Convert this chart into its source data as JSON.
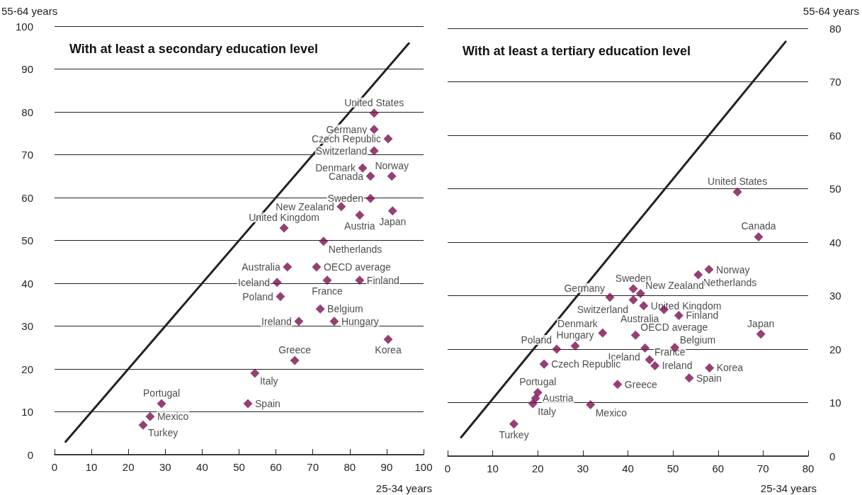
{
  "chart_data": [
    {
      "type": "scatter",
      "title": "With at least a secondary education level",
      "xlabel": "25-34 years",
      "ylabel": "55-64 years",
      "xlim": [
        0,
        100
      ],
      "ylim": [
        0,
        100
      ],
      "xticks": [
        0,
        10,
        20,
        30,
        40,
        50,
        60,
        70,
        80,
        90,
        100
      ],
      "yticks": [
        0,
        10,
        20,
        30,
        40,
        50,
        60,
        70,
        80,
        90,
        100
      ],
      "grid": "y",
      "marker": "diamond",
      "series": [
        {
          "color": "#7b0f52",
          "x": [
            86.6,
            86.6,
            90.4,
            86.6,
            83.5,
            85.6,
            91.4,
            85.6,
            77.7,
            82.7,
            91.6,
            62.2,
            72.9,
            63.1,
            71.0,
            60.3,
            73.9,
            82.7,
            61.2,
            72.0,
            66.2,
            75.8,
            90.4,
            65.1,
            54.3,
            52.4,
            29.0,
            25.9,
            24.0
          ],
          "values": [
            79.7,
            75.9,
            73.7,
            70.9,
            66.9,
            65.0,
            65.0,
            59.8,
            57.9,
            55.9,
            56.9,
            52.9,
            49.8,
            43.8,
            43.8,
            40.2,
            40.7,
            40.7,
            36.9,
            34.0,
            31.1,
            31.1,
            26.9,
            22.0,
            19.0,
            11.9,
            11.9,
            8.9,
            6.9
          ]
        },
        {
          "type": "line",
          "color": "#222222",
          "marker": "none",
          "line_style": "solid",
          "x": [
            3,
            96
          ],
          "values": [
            3,
            96
          ]
        }
      ],
      "annotations": [
        {
          "text": "United States",
          "x": 86.6,
          "y": 79.7
        },
        {
          "text": "Germany",
          "x": 86.6,
          "y": 75.9
        },
        {
          "text": "Czech Republic",
          "x": 90.4,
          "y": 73.7
        },
        {
          "text": "Switzerland",
          "x": 86.6,
          "y": 70.9
        },
        {
          "text": "Denmark",
          "x": 83.5,
          "y": 66.9
        },
        {
          "text": "Canada",
          "x": 85.6,
          "y": 65.0
        },
        {
          "text": "Norway",
          "x": 91.4,
          "y": 65.0
        },
        {
          "text": "Sweden",
          "x": 85.6,
          "y": 59.8
        },
        {
          "text": "New Zealand",
          "x": 77.7,
          "y": 57.9
        },
        {
          "text": "Austria",
          "x": 82.7,
          "y": 55.9
        },
        {
          "text": "Japan",
          "x": 91.6,
          "y": 56.9
        },
        {
          "text": "United Kingdom",
          "x": 62.2,
          "y": 52.9
        },
        {
          "text": "Netherlands",
          "x": 72.9,
          "y": 49.8
        },
        {
          "text": "Australia",
          "x": 63.1,
          "y": 43.8
        },
        {
          "text": "OECD average",
          "x": 71.0,
          "y": 43.8
        },
        {
          "text": "Iceland",
          "x": 60.3,
          "y": 40.2
        },
        {
          "text": "France",
          "x": 73.9,
          "y": 40.7
        },
        {
          "text": "Finland",
          "x": 82.7,
          "y": 40.7
        },
        {
          "text": "Poland",
          "x": 61.2,
          "y": 36.9
        },
        {
          "text": "Belgium",
          "x": 72.0,
          "y": 34.0
        },
        {
          "text": "Ireland",
          "x": 66.2,
          "y": 31.1
        },
        {
          "text": "Hungary",
          "x": 75.8,
          "y": 31.1
        },
        {
          "text": "Korea",
          "x": 90.4,
          "y": 26.9
        },
        {
          "text": "Greece",
          "x": 65.1,
          "y": 22.0
        },
        {
          "text": "Italy",
          "x": 54.3,
          "y": 19.0
        },
        {
          "text": "Spain",
          "x": 52.4,
          "y": 11.9
        },
        {
          "text": "Portugal",
          "x": 29.0,
          "y": 11.9
        },
        {
          "text": "Mexico",
          "x": 25.9,
          "y": 8.9
        },
        {
          "text": "Turkey",
          "x": 24.0,
          "y": 6.9
        }
      ]
    },
    {
      "type": "scatter",
      "title": "With at least a tertiary education level",
      "xlabel": "25-34 years",
      "ylabel": "55-64 years",
      "xlim": [
        0,
        80
      ],
      "ylim": [
        0,
        80
      ],
      "xticks": [
        0,
        10,
        20,
        30,
        40,
        50,
        60,
        70,
        80
      ],
      "yticks": [
        0,
        10,
        20,
        30,
        40,
        50,
        60,
        70,
        80
      ],
      "grid": "y",
      "marker": "diamond",
      "series": [
        {
          "color": "#7b0f52",
          "x": [
            64.3,
            69.0,
            58.0,
            55.6,
            41.2,
            42.8,
            36.0,
            41.2,
            43.5,
            48.0,
            51.3,
            69.5,
            34.4,
            41.7,
            28.3,
            24.2,
            43.8,
            50.4,
            44.8,
            46.0,
            21.4,
            58.1,
            53.6,
            37.7,
            20.0,
            19.5,
            18.9,
            31.7,
            14.7
          ],
          "values": [
            49.4,
            41.0,
            34.9,
            33.9,
            31.3,
            30.4,
            29.7,
            29.2,
            28.1,
            27.4,
            26.3,
            22.8,
            23.0,
            22.6,
            20.6,
            20.0,
            20.2,
            20.3,
            18.0,
            16.9,
            17.2,
            16.5,
            14.6,
            13.4,
            11.9,
            10.8,
            9.8,
            9.6,
            6.0
          ]
        },
        {
          "type": "line",
          "color": "#222222",
          "marker": "none",
          "line_style": "solid",
          "x": [
            3,
            75
          ],
          "values": [
            3.5,
            77.5
          ]
        }
      ],
      "annotations": [
        {
          "text": "United States",
          "x": 64.3,
          "y": 49.4
        },
        {
          "text": "Canada",
          "x": 69.0,
          "y": 41.0
        },
        {
          "text": "Norway",
          "x": 58.0,
          "y": 34.9
        },
        {
          "text": "Netherlands",
          "x": 55.6,
          "y": 33.9
        },
        {
          "text": "Sweden",
          "x": 41.2,
          "y": 31.3
        },
        {
          "text": "New Zealand",
          "x": 42.8,
          "y": 30.4
        },
        {
          "text": "Germany",
          "x": 36.0,
          "y": 29.7
        },
        {
          "text": "Switzerland",
          "x": 41.2,
          "y": 29.2
        },
        {
          "text": "United Kingdom",
          "x": 43.5,
          "y": 28.1
        },
        {
          "text": "Australia",
          "x": 48.0,
          "y": 27.4
        },
        {
          "text": "Finland",
          "x": 51.3,
          "y": 26.3
        },
        {
          "text": "Japan",
          "x": 69.5,
          "y": 22.8
        },
        {
          "text": "Denmark",
          "x": 34.4,
          "y": 23.0
        },
        {
          "text": "OECD average",
          "x": 41.7,
          "y": 22.6
        },
        {
          "text": "Hungary",
          "x": 28.3,
          "y": 20.6
        },
        {
          "text": "Poland",
          "x": 24.2,
          "y": 20.0
        },
        {
          "text": "Iceland",
          "x": 43.8,
          "y": 20.2
        },
        {
          "text": "Belgium",
          "x": 50.4,
          "y": 20.3
        },
        {
          "text": "France",
          "x": 44.8,
          "y": 18.0
        },
        {
          "text": "Ireland",
          "x": 46.0,
          "y": 16.9
        },
        {
          "text": "Czech Republic",
          "x": 21.4,
          "y": 17.2
        },
        {
          "text": "Korea",
          "x": 58.1,
          "y": 16.5
        },
        {
          "text": "Spain",
          "x": 53.6,
          "y": 14.6
        },
        {
          "text": "Greece",
          "x": 37.7,
          "y": 13.4
        },
        {
          "text": "Portugal",
          "x": 20.0,
          "y": 11.9
        },
        {
          "text": "Austria",
          "x": 19.5,
          "y": 10.8
        },
        {
          "text": "Italy",
          "x": 18.9,
          "y": 9.8
        },
        {
          "text": "Mexico",
          "x": 31.7,
          "y": 9.6
        },
        {
          "text": "Turkey",
          "x": 14.7,
          "y": 6.0
        }
      ]
    }
  ]
}
